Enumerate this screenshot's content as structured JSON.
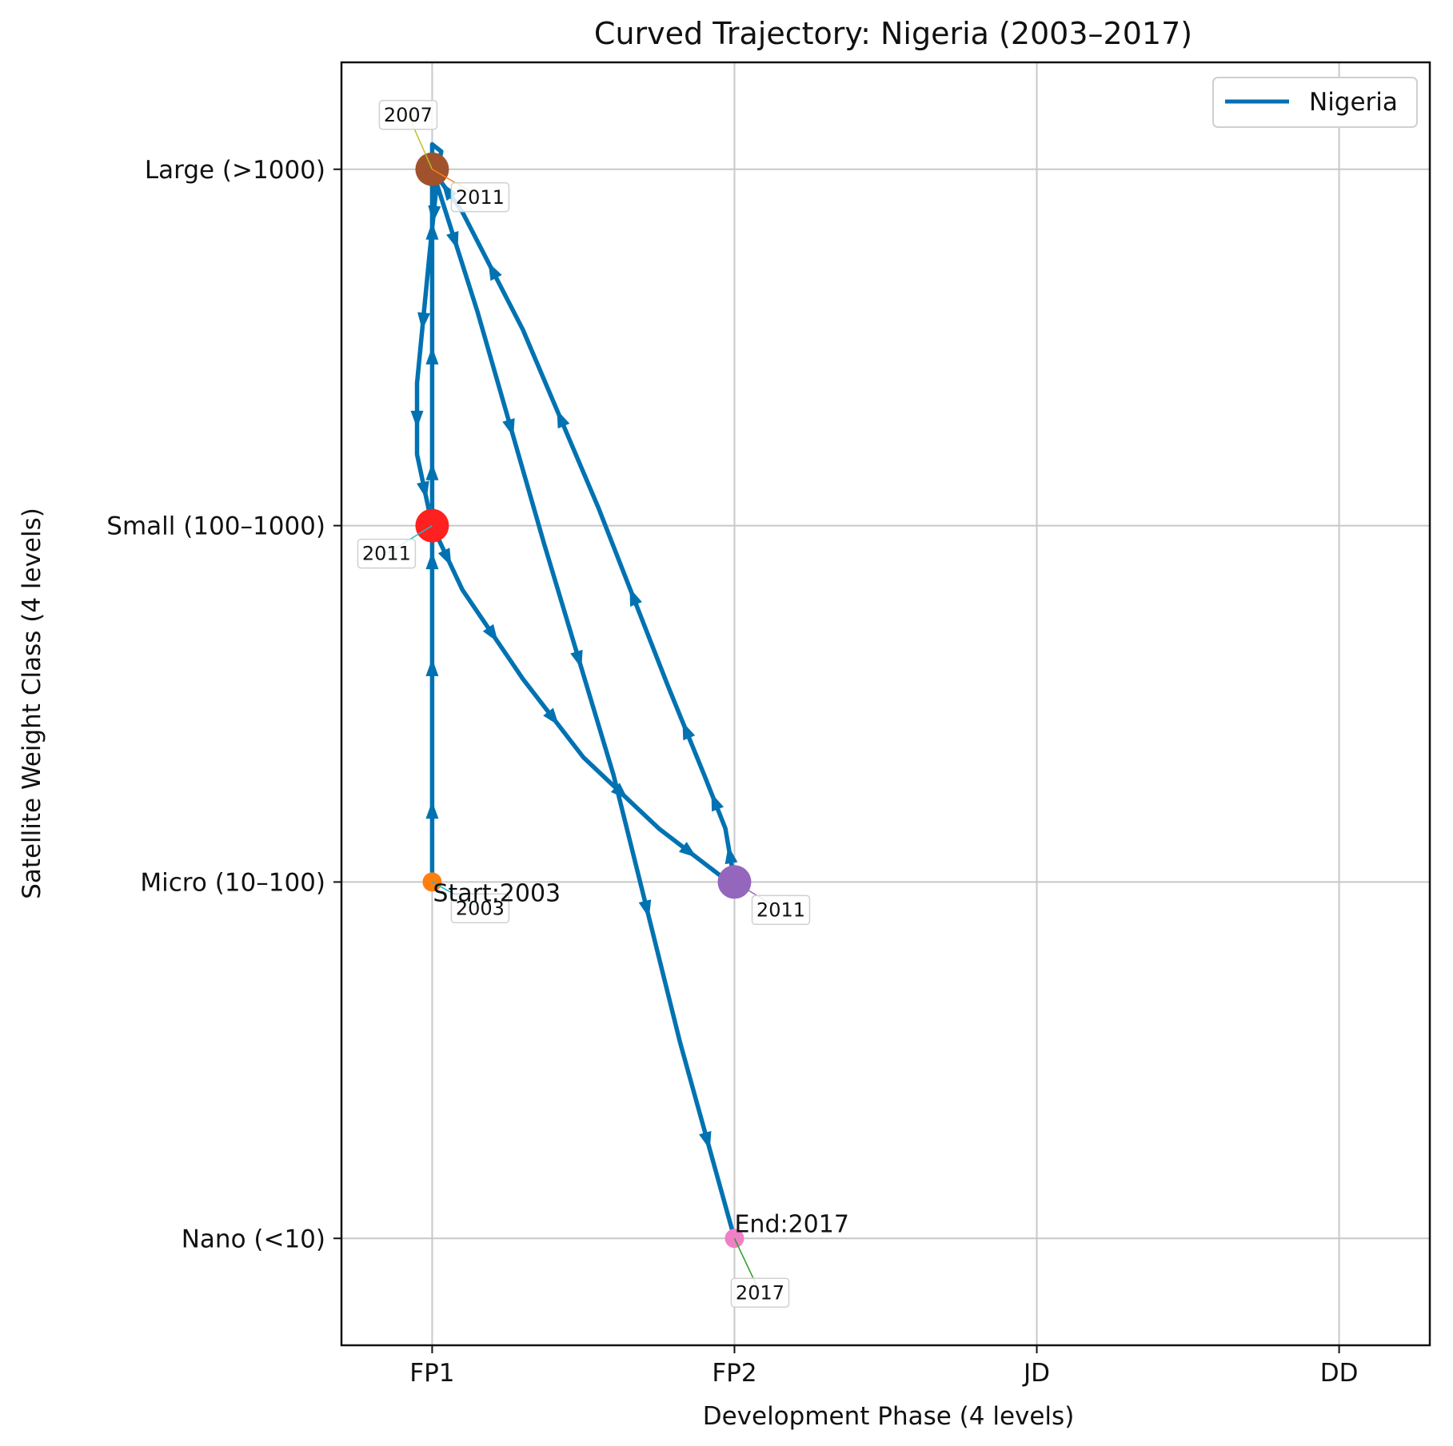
{
  "chart_data": {
    "type": "line",
    "title": "Curved Trajectory: Nigeria (2003–2017)",
    "xlabel": "Development Phase (4 levels)",
    "ylabel": "Satellite Weight Class (4 levels)",
    "x_categories": [
      "FP1",
      "FP2",
      "JD",
      "DD"
    ],
    "y_categories": [
      "Nano (<10)",
      "Micro (10–100)",
      "Small (100–1000)",
      "Large (>1000)"
    ],
    "xlim": [
      -0.3,
      3.3
    ],
    "ylim": [
      -0.3,
      3.3
    ],
    "grid": true,
    "legend": {
      "position": "top-right",
      "entries": [
        "Nigeria"
      ]
    },
    "series": [
      {
        "name": "Nigeria",
        "color": "#0072B2",
        "path": [
          [
            0,
            1
          ],
          [
            0,
            1.4
          ],
          [
            0,
            1.8
          ],
          [
            0,
            2
          ],
          [
            0,
            2.3
          ],
          [
            0,
            2.65
          ],
          [
            0,
            3
          ],
          [
            0,
            3.07
          ],
          [
            0.03,
            3.05
          ],
          [
            0.02,
            3.0
          ],
          [
            -0.01,
            2.75
          ],
          [
            -0.05,
            2.4
          ],
          [
            -0.05,
            2.2
          ],
          [
            0,
            2
          ],
          [
            0.1,
            1.82
          ],
          [
            0.3,
            1.57
          ],
          [
            0.5,
            1.35
          ],
          [
            0.75,
            1.15
          ],
          [
            0.95,
            1.02
          ],
          [
            1,
            1
          ],
          [
            0.97,
            1.15
          ],
          [
            0.9,
            1.3
          ],
          [
            0.78,
            1.55
          ],
          [
            0.55,
            2.05
          ],
          [
            0.3,
            2.55
          ],
          [
            0.1,
            2.88
          ],
          [
            0,
            3
          ],
          [
            0.15,
            2.6
          ],
          [
            0.37,
            1.95
          ],
          [
            0.6,
            1.3
          ],
          [
            0.82,
            0.55
          ],
          [
            1,
            0
          ]
        ]
      }
    ],
    "markers": [
      {
        "x": 0,
        "y": 1,
        "color": "#FF7F0E",
        "size": "small"
      },
      {
        "x": 0,
        "y": 3,
        "color": "#A0522D",
        "size": "large"
      },
      {
        "x": 0,
        "y": 2,
        "color": "#FF2020",
        "size": "large"
      },
      {
        "x": 1,
        "y": 1,
        "color": "#9467BD",
        "size": "large"
      },
      {
        "x": 1,
        "y": 0,
        "color": "#F07FC8",
        "size": "small"
      }
    ],
    "annotations": [
      {
        "text": "2003",
        "x": 0,
        "y": 1,
        "dx": 60,
        "dy": 33,
        "line_color": "#17becf"
      },
      {
        "text": "2007",
        "x": 0,
        "y": 3,
        "dx": -30,
        "dy": -68,
        "line_color": "#bcbd22"
      },
      {
        "text": "2011",
        "x": 0,
        "y": 3,
        "dx": 60,
        "dy": 35,
        "line_color": "#FF7F0E"
      },
      {
        "text": "2011",
        "x": 0,
        "y": 2,
        "dx": -57,
        "dy": 35,
        "line_color": "#17becf"
      },
      {
        "text": "2011",
        "x": 1,
        "y": 1,
        "dx": 58,
        "dy": 35,
        "line_color": "#9467BD"
      },
      {
        "text": "2017",
        "x": 1,
        "y": 0,
        "dx": 32,
        "dy": 68,
        "line_color": "#2ca02c"
      }
    ],
    "start_label": {
      "text": "Start:2003",
      "x": 0,
      "y": 1
    },
    "end_label": {
      "text": "End:2017",
      "x": 1,
      "y": 0
    }
  }
}
